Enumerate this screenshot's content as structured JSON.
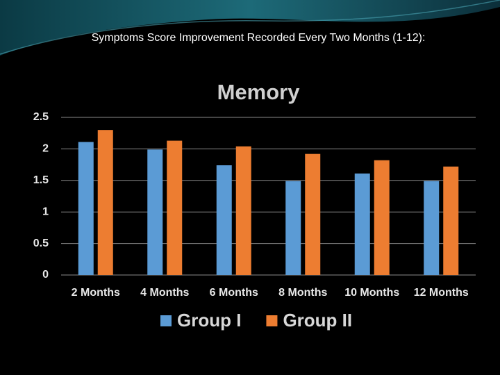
{
  "heading": "Symptoms Score Improvement Recorded Every Two Months (1-12):",
  "chart_data": {
    "type": "bar",
    "title": "Memory",
    "categories": [
      "2 Months",
      "4 Months",
      "6 Months",
      "8 Months",
      "10 Months",
      "12 Months"
    ],
    "series": [
      {
        "name": "Group I",
        "color": "#5b9bd5",
        "values": [
          2.11,
          1.99,
          1.74,
          1.49,
          1.61,
          1.49
        ]
      },
      {
        "name": "Group II",
        "color": "#ed7d31",
        "values": [
          2.3,
          2.13,
          2.04,
          1.92,
          1.82,
          1.72
        ]
      }
    ],
    "ylim": [
      0,
      2.5
    ],
    "yticks": [
      0,
      0.5,
      1,
      1.5,
      2,
      2.5
    ],
    "grid": true,
    "legend": "bottom"
  }
}
